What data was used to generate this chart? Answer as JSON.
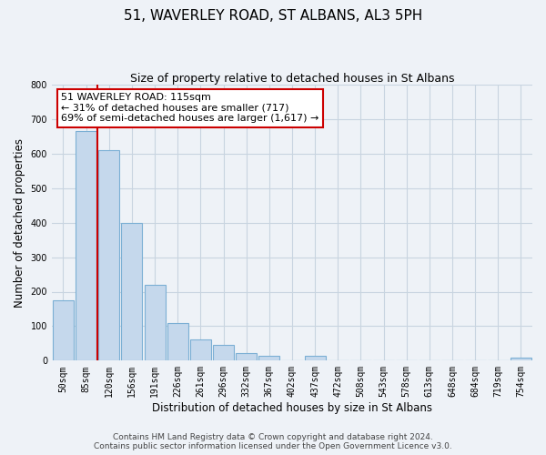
{
  "title": "51, WAVERLEY ROAD, ST ALBANS, AL3 5PH",
  "subtitle": "Size of property relative to detached houses in St Albans",
  "xlabel": "Distribution of detached houses by size in St Albans",
  "ylabel": "Number of detached properties",
  "bar_labels": [
    "50sqm",
    "85sqm",
    "120sqm",
    "156sqm",
    "191sqm",
    "226sqm",
    "261sqm",
    "296sqm",
    "332sqm",
    "367sqm",
    "402sqm",
    "437sqm",
    "472sqm",
    "508sqm",
    "543sqm",
    "578sqm",
    "613sqm",
    "648sqm",
    "684sqm",
    "719sqm",
    "754sqm"
  ],
  "bar_values": [
    175,
    665,
    610,
    400,
    220,
    110,
    62,
    47,
    23,
    14,
    0,
    15,
    0,
    0,
    0,
    0,
    0,
    0,
    0,
    0,
    8
  ],
  "bar_fill_color": "#c5d8ec",
  "bar_edge_color": "#7bafd4",
  "property_line_x": 2,
  "bin_edges_idx": [
    0,
    1,
    2,
    3,
    4,
    5,
    6,
    7,
    8,
    9,
    10,
    11,
    12,
    13,
    14,
    15,
    16,
    17,
    18,
    19,
    20,
    21
  ],
  "vline_color": "#cc0000",
  "annotation_line1": "51 WAVERLEY ROAD: 115sqm",
  "annotation_line2": "← 31% of detached houses are smaller (717)",
  "annotation_line3": "69% of semi-detached houses are larger (1,617) →",
  "annotation_box_color": "#ffffff",
  "annotation_box_edge": "#cc0000",
  "ylim": [
    0,
    800
  ],
  "yticks": [
    0,
    100,
    200,
    300,
    400,
    500,
    600,
    700,
    800
  ],
  "background_color": "#eef2f7",
  "grid_color": "#c8d4e0",
  "title_fontsize": 11,
  "subtitle_fontsize": 9,
  "axis_label_fontsize": 8.5,
  "tick_fontsize": 7,
  "annotation_fontsize": 8,
  "footer_fontsize": 6.5,
  "footer_line1": "Contains HM Land Registry data © Crown copyright and database right 2024.",
  "footer_line2": "Contains public sector information licensed under the Open Government Licence v3.0."
}
